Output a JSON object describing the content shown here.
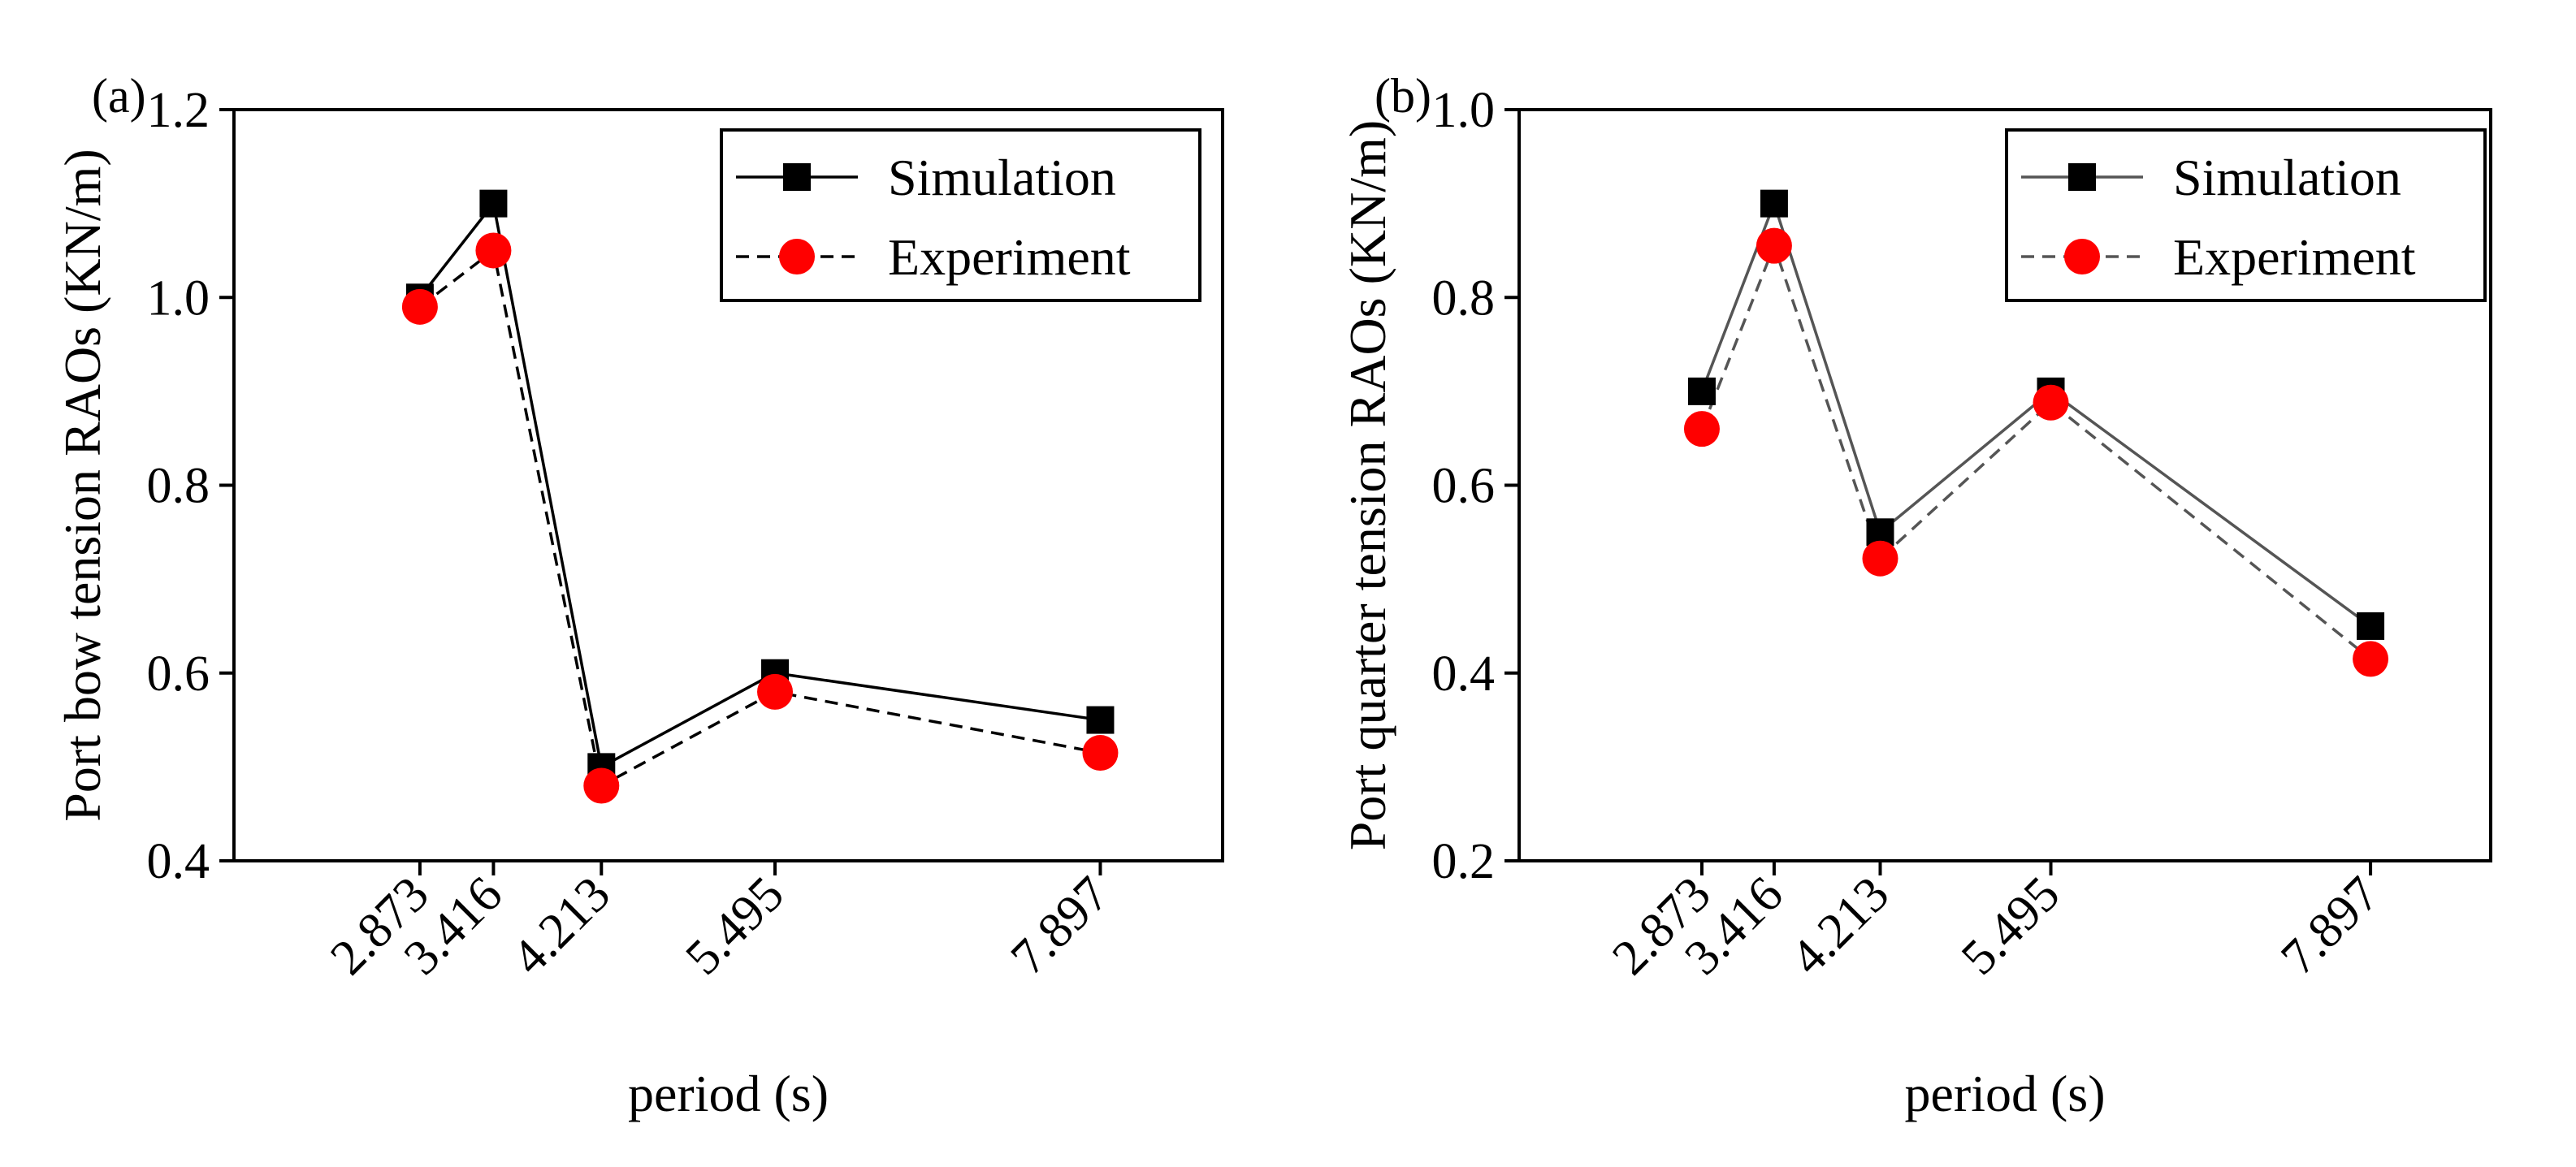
{
  "chart_data": [
    {
      "type": "line",
      "panel_label": "(a)",
      "title": "",
      "xlabel": "period (s)",
      "ylabel": "Port bow tension RAOs (KN/m)",
      "x": [
        2.873,
        3.416,
        4.213,
        5.495,
        7.897
      ],
      "x_tick_labels": [
        "2.873",
        "3.416",
        "4.213",
        "5.495",
        "7.897"
      ],
      "xlim": [
        1.5,
        8.8
      ],
      "ylim": [
        0.4,
        1.2
      ],
      "y_ticks": [
        0.4,
        0.6,
        0.8,
        1.0,
        1.2
      ],
      "y_tick_labels": [
        "0.4",
        "0.6",
        "0.8",
        "1.0",
        "1.2"
      ],
      "legend_position": "top-right",
      "series": [
        {
          "name": "Simulation",
          "values": [
            1.0,
            1.1,
            0.5,
            0.6,
            0.55
          ],
          "marker": "square",
          "line_style": "solid",
          "color": "#000000",
          "line_color": "#000000"
        },
        {
          "name": "Experiment",
          "values": [
            0.99,
            1.05,
            0.48,
            0.58,
            0.515
          ],
          "marker": "circle",
          "line_style": "dashed",
          "color": "#ff0000",
          "line_color": "#000000"
        }
      ]
    },
    {
      "type": "line",
      "panel_label": "(b)",
      "title": "",
      "xlabel": "period (s)",
      "ylabel": "Port quarter tension RAOs (KN/m)",
      "x": [
        2.873,
        3.416,
        4.213,
        5.495,
        7.897
      ],
      "x_tick_labels": [
        "2.873",
        "3.416",
        "4.213",
        "5.495",
        "7.897"
      ],
      "xlim": [
        1.5,
        8.8
      ],
      "ylim": [
        0.2,
        1.0
      ],
      "y_ticks": [
        0.2,
        0.4,
        0.6,
        0.8,
        1.0
      ],
      "y_tick_labels": [
        "0.2",
        "0.4",
        "0.6",
        "0.8",
        "1.0"
      ],
      "legend_position": "top-right",
      "series": [
        {
          "name": "Simulation",
          "values": [
            0.7,
            0.9,
            0.55,
            0.7,
            0.45
          ],
          "marker": "square",
          "line_style": "solid",
          "color": "#000000",
          "line_color": "#555555"
        },
        {
          "name": "Experiment",
          "values": [
            0.66,
            0.855,
            0.522,
            0.688,
            0.415
          ],
          "marker": "circle",
          "line_style": "dashed",
          "color": "#ff0000",
          "line_color": "#555555"
        }
      ]
    }
  ]
}
